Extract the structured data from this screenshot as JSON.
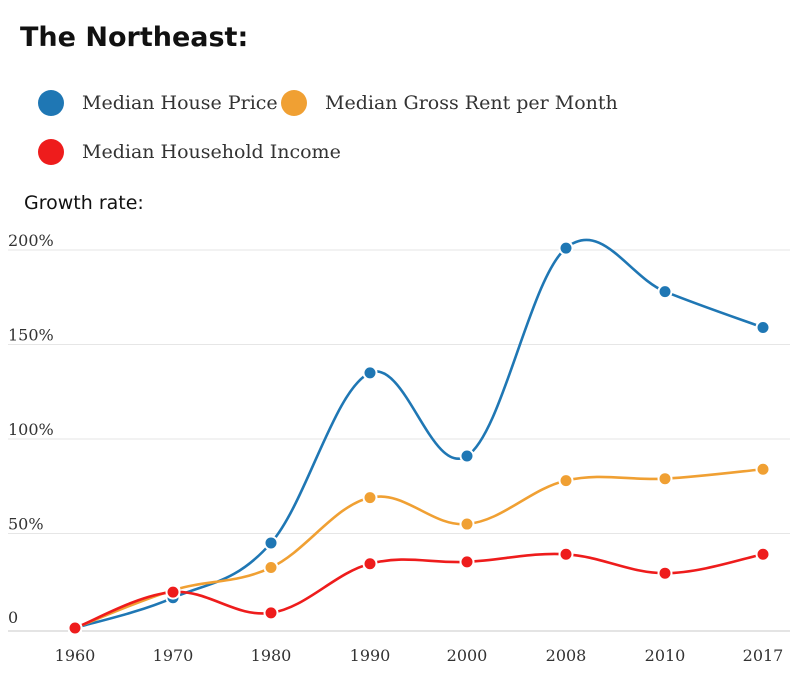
{
  "title": "The Northeast:",
  "growth_label": "Growth rate:",
  "legend": [
    {
      "label": "Median House Price",
      "color": "#1f77b4"
    },
    {
      "label": "Median Gross Rent per Month",
      "color": "#f0a033"
    },
    {
      "label": "Median Household Income",
      "color": "#ee1c1c"
    }
  ],
  "chart_data": {
    "type": "line",
    "x": [
      "1960",
      "1970",
      "1980",
      "1990",
      "2000",
      "2008",
      "2010",
      "2017"
    ],
    "y_ticks": [
      "0",
      "50%",
      "100%",
      "150%",
      "200%"
    ],
    "ylim": [
      0,
      200
    ],
    "grid": true,
    "series": [
      {
        "name": "Median House Price",
        "color": "#1f77b4",
        "values": [
          0,
          16,
          45,
          135,
          91,
          201,
          178,
          159
        ]
      },
      {
        "name": "Median Gross Rent per Month",
        "color": "#f0a033",
        "values": [
          0,
          20,
          32,
          69,
          55,
          78,
          79,
          84
        ]
      },
      {
        "name": "Median Household Income",
        "color": "#ee1c1c",
        "values": [
          0,
          19,
          8,
          34,
          35,
          39,
          29,
          39
        ]
      }
    ]
  }
}
